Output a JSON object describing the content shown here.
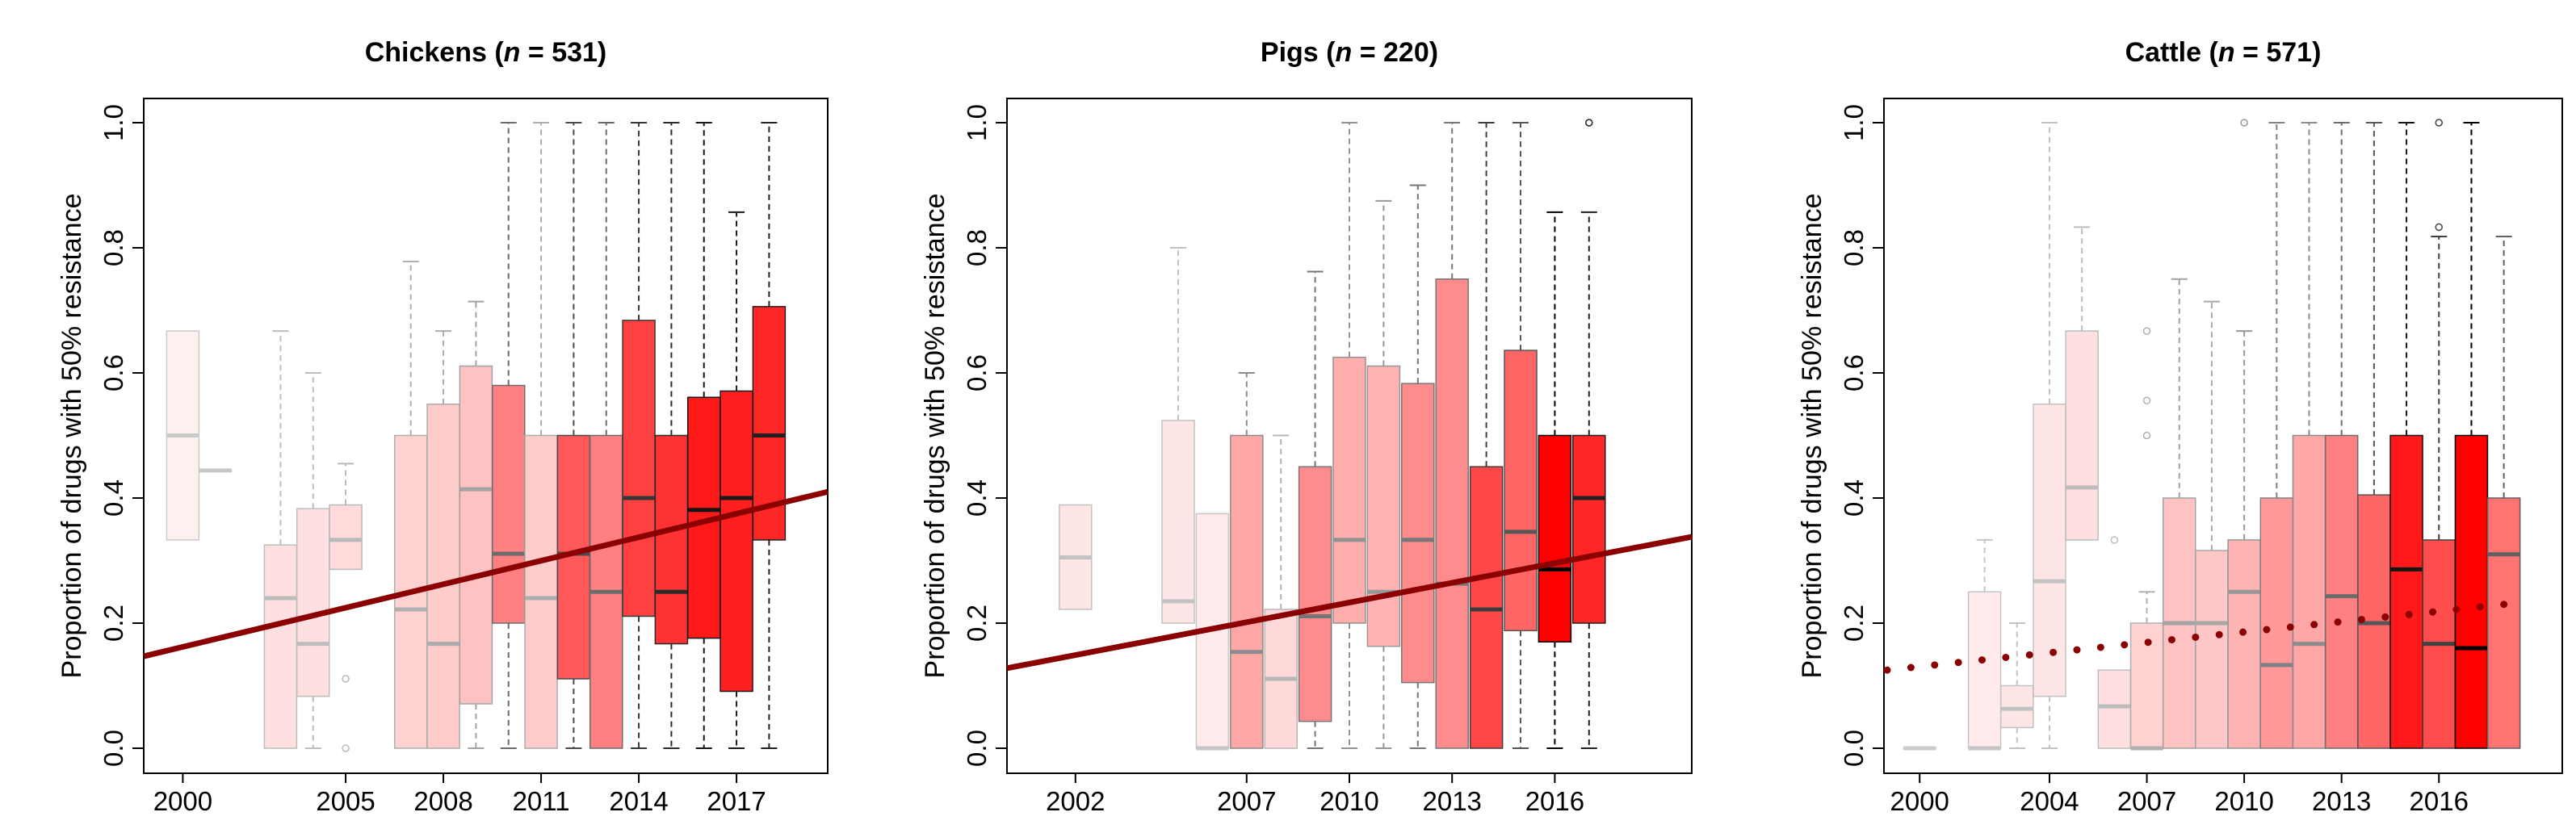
{
  "chart_data": [
    {
      "type": "box",
      "title_prefix": "Chickens (",
      "title_n_italic": "n",
      "title_suffix": " = 531)",
      "ylabel": "Proportion of drugs with 50% resistance",
      "xlabel": "",
      "x_tick_labels": [
        "2000",
        "2005",
        "2008",
        "2011",
        "2014",
        "2017"
      ],
      "x_tick_years": [
        2000,
        2005,
        2008,
        2011,
        2014,
        2017
      ],
      "y_tick_labels": [
        "0.0",
        "0.2",
        "0.4",
        "0.6",
        "0.8",
        "1.0"
      ],
      "ylim": [
        0,
        1
      ],
      "xlim": [
        1998.8,
        2019.8
      ],
      "box_color": "#ff0000",
      "trend": {
        "style": "solid",
        "color": "#8b0000",
        "x0": 1998.8,
        "y0": 0.147,
        "x1": 2019.8,
        "y1": 0.41
      },
      "boxes": [
        {
          "year": 2000,
          "q1": 0.333,
          "median": 0.5,
          "q3": 0.667,
          "whisker_low": 0.333,
          "whisker_high": 0.667,
          "alpha": 0.06,
          "outliers": []
        },
        {
          "year": 2001,
          "q1": 0.444,
          "median": 0.444,
          "q3": 0.444,
          "whisker_low": 0.444,
          "whisker_high": 0.444,
          "alpha": 0.08,
          "outliers": []
        },
        {
          "year": 2003,
          "q1": 0.0,
          "median": 0.24,
          "q3": 0.325,
          "whisker_low": 0.0,
          "whisker_high": 0.667,
          "alpha": 0.12,
          "outliers": []
        },
        {
          "year": 2004,
          "q1": 0.083,
          "median": 0.167,
          "q3": 0.383,
          "whisker_low": 0.0,
          "whisker_high": 0.6,
          "alpha": 0.12,
          "outliers": []
        },
        {
          "year": 2005,
          "q1": 0.286,
          "median": 0.333,
          "q3": 0.389,
          "whisker_low": 0.286,
          "whisker_high": 0.455,
          "alpha": 0.14,
          "outliers": [
            0.111,
            0.0
          ]
        },
        {
          "year": 2007,
          "q1": 0.0,
          "median": 0.222,
          "q3": 0.5,
          "whisker_low": 0.0,
          "whisker_high": 0.778,
          "alpha": 0.18,
          "outliers": []
        },
        {
          "year": 2008,
          "q1": 0.0,
          "median": 0.167,
          "q3": 0.55,
          "whisker_low": 0.0,
          "whisker_high": 0.667,
          "alpha": 0.2,
          "outliers": []
        },
        {
          "year": 2009,
          "q1": 0.071,
          "median": 0.414,
          "q3": 0.611,
          "whisker_low": 0.0,
          "whisker_high": 0.714,
          "alpha": 0.24,
          "outliers": []
        },
        {
          "year": 2010,
          "q1": 0.2,
          "median": 0.311,
          "q3": 0.58,
          "whisker_low": 0.0,
          "whisker_high": 1.0,
          "alpha": 0.5,
          "outliers": []
        },
        {
          "year": 2011,
          "q1": 0.0,
          "median": 0.24,
          "q3": 0.5,
          "whisker_low": 0.0,
          "whisker_high": 1.0,
          "alpha": 0.2,
          "outliers": []
        },
        {
          "year": 2012,
          "q1": 0.111,
          "median": 0.311,
          "q3": 0.5,
          "whisker_low": 0.0,
          "whisker_high": 1.0,
          "alpha": 0.65,
          "outliers": []
        },
        {
          "year": 2013,
          "q1": 0.0,
          "median": 0.25,
          "q3": 0.5,
          "whisker_low": 0.0,
          "whisker_high": 1.0,
          "alpha": 0.5,
          "outliers": []
        },
        {
          "year": 2014,
          "q1": 0.211,
          "median": 0.4,
          "q3": 0.684,
          "whisker_low": 0.0,
          "whisker_high": 1.0,
          "alpha": 0.75,
          "outliers": []
        },
        {
          "year": 2015,
          "q1": 0.167,
          "median": 0.25,
          "q3": 0.5,
          "whisker_low": 0.0,
          "whisker_high": 1.0,
          "alpha": 0.8,
          "outliers": []
        },
        {
          "year": 2016,
          "q1": 0.176,
          "median": 0.381,
          "q3": 0.561,
          "whisker_low": 0.0,
          "whisker_high": 1.0,
          "alpha": 0.9,
          "outliers": []
        },
        {
          "year": 2017,
          "q1": 0.091,
          "median": 0.4,
          "q3": 0.571,
          "whisker_low": 0.0,
          "whisker_high": 0.857,
          "alpha": 0.88,
          "outliers": []
        },
        {
          "year": 2018,
          "q1": 0.333,
          "median": 0.5,
          "q3": 0.706,
          "whisker_low": 0.0,
          "whisker_high": 1.0,
          "alpha": 0.85,
          "outliers": []
        }
      ]
    },
    {
      "type": "box",
      "title_prefix": "Pigs (",
      "title_n_italic": "n",
      "title_suffix": " = 220)",
      "ylabel": "Proportion of drugs with 50% resistance",
      "xlabel": "",
      "x_tick_labels": [
        "2002",
        "2007",
        "2010",
        "2013",
        "2016"
      ],
      "x_tick_years": [
        2002,
        2007,
        2010,
        2013,
        2016
      ],
      "y_tick_labels": [
        "0.0",
        "0.2",
        "0.4",
        "0.6",
        "0.8",
        "1.0"
      ],
      "ylim": [
        0,
        1
      ],
      "xlim": [
        2000,
        2020
      ],
      "box_color": "#ff0000",
      "trend": {
        "style": "solid",
        "color": "#8b0000",
        "x0": 2000,
        "y0": 0.128,
        "x1": 2020,
        "y1": 0.338
      },
      "boxes": [
        {
          "year": 2002,
          "q1": 0.222,
          "median": 0.305,
          "q3": 0.389,
          "whisker_low": 0.222,
          "whisker_high": 0.389,
          "alpha": 0.1,
          "outliers": []
        },
        {
          "year": 2005,
          "q1": 0.2,
          "median": 0.235,
          "q3": 0.524,
          "whisker_low": 0.2,
          "whisker_high": 0.8,
          "alpha": 0.1,
          "outliers": []
        },
        {
          "year": 2006,
          "q1": 0.0,
          "median": 0.0,
          "q3": 0.375,
          "whisker_low": 0.0,
          "whisker_high": 0.375,
          "alpha": 0.08,
          "outliers": []
        },
        {
          "year": 2007,
          "q1": 0.0,
          "median": 0.154,
          "q3": 0.5,
          "whisker_low": 0.0,
          "whisker_high": 0.6,
          "alpha": 0.35,
          "outliers": []
        },
        {
          "year": 2008,
          "q1": 0.0,
          "median": 0.111,
          "q3": 0.222,
          "whisker_low": 0.0,
          "whisker_high": 0.5,
          "alpha": 0.15,
          "outliers": []
        },
        {
          "year": 2009,
          "q1": 0.043,
          "median": 0.211,
          "q3": 0.45,
          "whisker_low": 0.0,
          "whisker_high": 0.762,
          "alpha": 0.45,
          "outliers": []
        },
        {
          "year": 2010,
          "q1": 0.2,
          "median": 0.333,
          "q3": 0.625,
          "whisker_low": 0.0,
          "whisker_high": 1.0,
          "alpha": 0.32,
          "outliers": []
        },
        {
          "year": 2011,
          "q1": 0.163,
          "median": 0.25,
          "q3": 0.611,
          "whisker_low": 0.0,
          "whisker_high": 0.875,
          "alpha": 0.3,
          "outliers": []
        },
        {
          "year": 2012,
          "q1": 0.105,
          "median": 0.333,
          "q3": 0.583,
          "whisker_low": 0.0,
          "whisker_high": 0.9,
          "alpha": 0.45,
          "outliers": []
        },
        {
          "year": 2013,
          "q1": 0.0,
          "median": 0.263,
          "q3": 0.75,
          "whisker_low": 0.0,
          "whisker_high": 1.0,
          "alpha": 0.45,
          "outliers": []
        },
        {
          "year": 2014,
          "q1": 0.0,
          "median": 0.222,
          "q3": 0.45,
          "whisker_low": 0.0,
          "whisker_high": 1.0,
          "alpha": 0.72,
          "outliers": []
        },
        {
          "year": 2015,
          "q1": 0.188,
          "median": 0.346,
          "q3": 0.636,
          "whisker_low": 0.0,
          "whisker_high": 1.0,
          "alpha": 0.6,
          "outliers": []
        },
        {
          "year": 2016,
          "q1": 0.17,
          "median": 0.286,
          "q3": 0.5,
          "whisker_low": 0.0,
          "whisker_high": 0.857,
          "alpha": 1.0,
          "outliers": []
        },
        {
          "year": 2017,
          "q1": 0.2,
          "median": 0.4,
          "q3": 0.5,
          "whisker_low": 0.0,
          "whisker_high": 0.857,
          "alpha": 0.85,
          "outliers": [
            1.0
          ]
        }
      ]
    },
    {
      "type": "box",
      "title_prefix": "Cattle (",
      "title_n_italic": "n",
      "title_suffix": " = 571)",
      "ylabel": "Proportion of drugs with 50% resistance",
      "xlabel": "",
      "x_tick_labels": [
        "2000",
        "2004",
        "2007",
        "2010",
        "2013",
        "2016"
      ],
      "x_tick_years": [
        2000,
        2004,
        2007,
        2010,
        2013,
        2016
      ],
      "y_tick_labels": [
        "0.0",
        "0.2",
        "0.4",
        "0.6",
        "0.8",
        "1.0"
      ],
      "ylim": [
        0,
        1
      ],
      "xlim": [
        1998.9,
        2019.8
      ],
      "box_color": "#ff0000",
      "trend": {
        "style": "dotted",
        "color": "#8b0000",
        "x0": 1999.0,
        "y0": 0.125,
        "x1": 2018.0,
        "y1": 0.23
      },
      "boxes": [
        {
          "year": 2000,
          "q1": 0.0,
          "median": 0.0,
          "q3": 0.0,
          "whisker_low": 0.0,
          "whisker_high": 0.0,
          "alpha": 0.05,
          "outliers": []
        },
        {
          "year": 2002,
          "q1": 0.0,
          "median": 0.0,
          "q3": 0.25,
          "whisker_low": 0.0,
          "whisker_high": 0.333,
          "alpha": 0.08,
          "outliers": []
        },
        {
          "year": 2003,
          "q1": 0.033,
          "median": 0.063,
          "q3": 0.1,
          "whisker_low": 0.0,
          "whisker_high": 0.2,
          "alpha": 0.1,
          "outliers": []
        },
        {
          "year": 2004,
          "q1": 0.083,
          "median": 0.267,
          "q3": 0.55,
          "whisker_low": 0.0,
          "whisker_high": 1.0,
          "alpha": 0.1,
          "outliers": []
        },
        {
          "year": 2005,
          "q1": 0.333,
          "median": 0.417,
          "q3": 0.667,
          "whisker_low": 0.333,
          "whisker_high": 0.833,
          "alpha": 0.12,
          "outliers": []
        },
        {
          "year": 2006,
          "q1": 0.0,
          "median": 0.067,
          "q3": 0.125,
          "whisker_low": 0.0,
          "whisker_high": 0.125,
          "alpha": 0.12,
          "outliers": [
            0.333
          ]
        },
        {
          "year": 2007,
          "q1": 0.0,
          "median": 0.0,
          "q3": 0.2,
          "whisker_low": 0.0,
          "whisker_high": 0.25,
          "alpha": 0.18,
          "outliers": [
            0.5,
            0.556,
            0.667
          ]
        },
        {
          "year": 2008,
          "q1": 0.0,
          "median": 0.2,
          "q3": 0.4,
          "whisker_low": 0.0,
          "whisker_high": 0.75,
          "alpha": 0.24,
          "outliers": []
        },
        {
          "year": 2009,
          "q1": 0.0,
          "median": 0.2,
          "q3": 0.316,
          "whisker_low": 0.0,
          "whisker_high": 0.714,
          "alpha": 0.22,
          "outliers": []
        },
        {
          "year": 2010,
          "q1": 0.0,
          "median": 0.25,
          "q3": 0.333,
          "whisker_low": 0.0,
          "whisker_high": 0.667,
          "alpha": 0.3,
          "outliers": [
            1.0
          ]
        },
        {
          "year": 2011,
          "q1": 0.0,
          "median": 0.133,
          "q3": 0.4,
          "whisker_low": 0.0,
          "whisker_high": 1.0,
          "alpha": 0.4,
          "outliers": []
        },
        {
          "year": 2012,
          "q1": 0.0,
          "median": 0.167,
          "q3": 0.5,
          "whisker_low": 0.0,
          "whisker_high": 1.0,
          "alpha": 0.35,
          "outliers": []
        },
        {
          "year": 2013,
          "q1": 0.0,
          "median": 0.243,
          "q3": 0.5,
          "whisker_low": 0.0,
          "whisker_high": 1.0,
          "alpha": 0.5,
          "outliers": []
        },
        {
          "year": 2014,
          "q1": 0.0,
          "median": 0.2,
          "q3": 0.405,
          "whisker_low": 0.0,
          "whisker_high": 1.0,
          "alpha": 0.6,
          "outliers": []
        },
        {
          "year": 2015,
          "q1": 0.0,
          "median": 0.286,
          "q3": 0.5,
          "whisker_low": 0.0,
          "whisker_high": 1.0,
          "alpha": 0.9,
          "outliers": []
        },
        {
          "year": 2016,
          "q1": 0.0,
          "median": 0.167,
          "q3": 0.333,
          "whisker_low": 0.0,
          "whisker_high": 0.818,
          "alpha": 0.7,
          "outliers": [
            0.833,
            1.0
          ]
        },
        {
          "year": 2017,
          "q1": 0.0,
          "median": 0.16,
          "q3": 0.5,
          "whisker_low": 0.0,
          "whisker_high": 1.0,
          "alpha": 1.0,
          "outliers": []
        },
        {
          "year": 2018,
          "q1": 0.0,
          "median": 0.31,
          "q3": 0.4,
          "whisker_low": 0.0,
          "whisker_high": 0.818,
          "alpha": 0.55,
          "outliers": []
        }
      ]
    }
  ]
}
